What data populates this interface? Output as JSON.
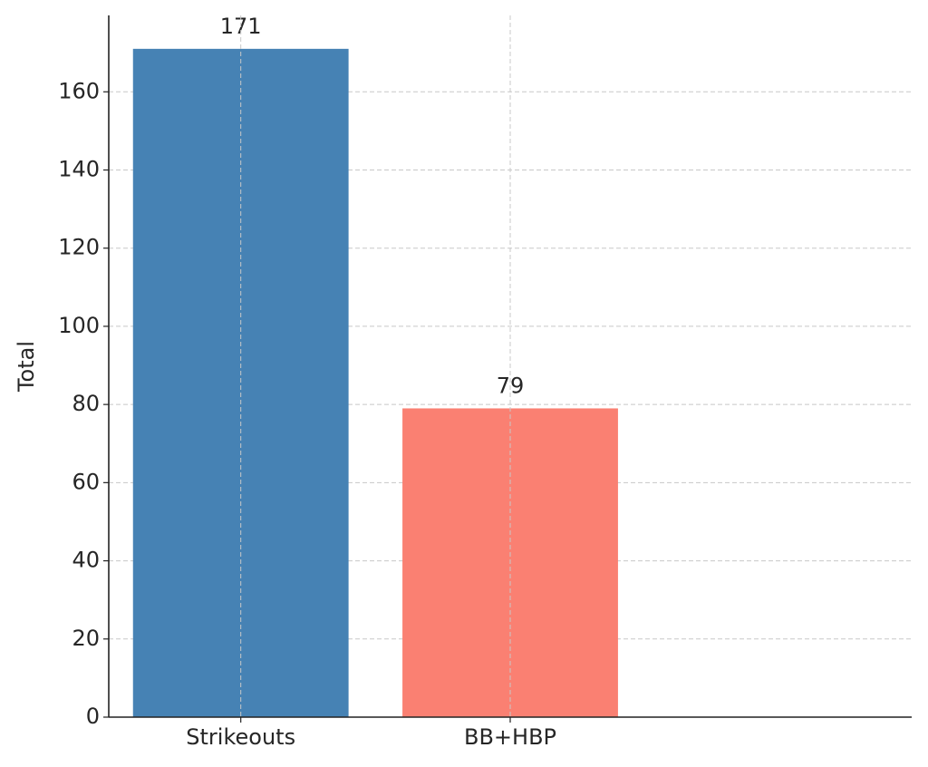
{
  "chart_data": {
    "type": "bar",
    "y_label": "Total",
    "categories": [
      "Strikeouts",
      "BB+HBP"
    ],
    "values": [
      171,
      79
    ],
    "colors": [
      "#4682b4",
      "#fa8072"
    ],
    "ylim": [
      0,
      179.55
    ],
    "yticks": [
      0,
      20,
      40,
      60,
      80,
      100,
      120,
      140,
      160
    ],
    "grid": true
  }
}
